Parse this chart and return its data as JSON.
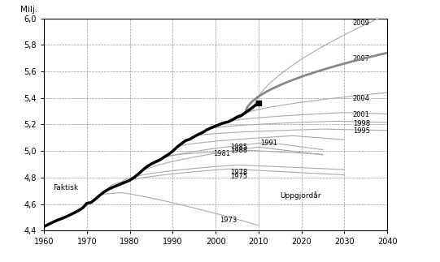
{
  "title": "Milj.",
  "xlabel_label": "Uppgjordår",
  "faktisk_label": "Faktisk",
  "xlim": [
    1960,
    2040
  ],
  "ylim": [
    4.4,
    6.0
  ],
  "xticks": [
    1960,
    1970,
    1980,
    1990,
    2000,
    2010,
    2020,
    2030,
    2040
  ],
  "yticks": [
    4.4,
    4.6,
    4.8,
    5.0,
    5.2,
    5.4,
    5.6,
    5.8,
    6.0
  ],
  "actual_color": "#000000",
  "forecast_color": "#aaaaaa",
  "forecast_2007_color": "#888888",
  "background_color": "#ffffff",
  "actual_years": [
    1960,
    1961,
    1962,
    1963,
    1964,
    1965,
    1966,
    1967,
    1968,
    1969,
    1970,
    1971,
    1972,
    1973,
    1974,
    1975,
    1976,
    1977,
    1978,
    1979,
    1980,
    1981,
    1982,
    1983,
    1984,
    1985,
    1986,
    1987,
    1988,
    1989,
    1990,
    1991,
    1992,
    1993,
    1994,
    1995,
    1996,
    1997,
    1998,
    1999,
    2000,
    2001,
    2002,
    2003,
    2004,
    2005,
    2006,
    2007,
    2008,
    2009,
    2010
  ],
  "actual_pop": [
    4.43,
    4.446,
    4.462,
    4.477,
    4.489,
    4.502,
    4.517,
    4.533,
    4.55,
    4.57,
    4.606,
    4.612,
    4.638,
    4.666,
    4.691,
    4.711,
    4.726,
    4.739,
    4.753,
    4.765,
    4.779,
    4.8,
    4.827,
    4.856,
    4.882,
    4.902,
    4.918,
    4.932,
    4.954,
    4.974,
    4.998,
    5.029,
    5.054,
    5.078,
    5.089,
    5.108,
    5.125,
    5.14,
    5.16,
    5.175,
    5.188,
    5.201,
    5.213,
    5.22,
    5.237,
    5.255,
    5.267,
    5.29,
    5.313,
    5.338,
    5.363
  ]
}
